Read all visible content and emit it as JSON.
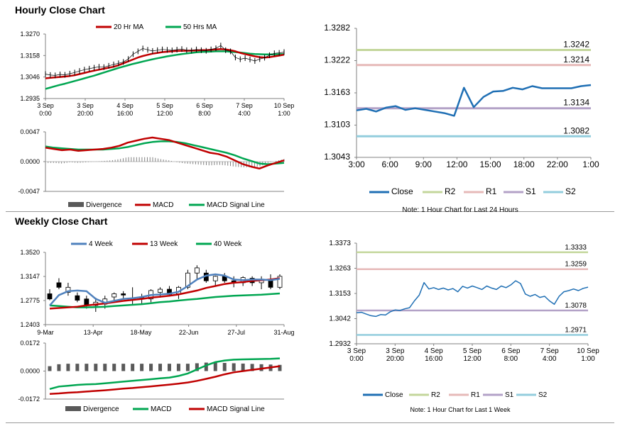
{
  "page": {
    "hourly_title": "Hourly Close Chart",
    "weekly_title": "Weekly Close Chart"
  },
  "colors": {
    "red": "#c00000",
    "green": "#00a651",
    "blue": "#1f6fb4",
    "steel": "#4f81bd",
    "gray": "#808080",
    "r2": "#c3d69b",
    "r1": "#e6b9b8",
    "s1": "#b3a2c7",
    "s2": "#93cddd"
  },
  "chart_data": [
    {
      "id": "hourly-price",
      "type": "line",
      "title": "Hourly Close Chart",
      "ylim": [
        1.2935,
        1.327
      ],
      "y_ticks": [
        "1.3270",
        "1.3158",
        "1.3046",
        "1.2935"
      ],
      "x_ticks": [
        [
          "3 Sep",
          "0:00"
        ],
        [
          "3 Sep",
          "20:00"
        ],
        [
          "4 Sep",
          "16:00"
        ],
        [
          "5 Sep",
          "12:00"
        ],
        [
          "6 Sep",
          "8:00"
        ],
        [
          "7 Sep",
          "4:00"
        ],
        [
          "10 Sep",
          "1:00"
        ]
      ],
      "legend": [
        "20 Hr MA",
        "50 Hrs MA"
      ],
      "close": [
        1.3062,
        1.3057,
        1.3055,
        1.306,
        1.3058,
        1.3064,
        1.307,
        1.3078,
        1.3085,
        1.309,
        1.3095,
        1.31,
        1.3098,
        1.3105,
        1.3112,
        1.3118,
        1.3125,
        1.314,
        1.3165,
        1.318,
        1.3195,
        1.3188,
        1.3182,
        1.3186,
        1.319,
        1.3188,
        1.3185,
        1.3189,
        1.3192,
        1.3186,
        1.3184,
        1.319,
        1.3186,
        1.3183,
        1.319,
        1.3196,
        1.321,
        1.3186,
        1.318,
        1.3148,
        1.3139,
        1.3145,
        1.3138,
        1.313,
        1.314,
        1.3147,
        1.316,
        1.317,
        1.3172,
        1.3176
      ],
      "ma20": [
        1.304,
        1.3043,
        1.3045,
        1.3047,
        1.3049,
        1.3052,
        1.3056,
        1.3062,
        1.3068,
        1.3074,
        1.308,
        1.3085,
        1.309,
        1.3095,
        1.31,
        1.3108,
        1.3118,
        1.3128,
        1.3138,
        1.3148,
        1.3156,
        1.3162,
        1.3168,
        1.3172,
        1.3176,
        1.3178,
        1.318,
        1.3182,
        1.3183,
        1.3183,
        1.3184,
        1.3185,
        1.3186,
        1.3186,
        1.3188,
        1.319,
        1.3192,
        1.319,
        1.3186,
        1.318,
        1.3172,
        1.3166,
        1.316,
        1.3154,
        1.315,
        1.3148,
        1.315,
        1.3154,
        1.3158,
        1.3163
      ],
      "ma50": [
        1.2985,
        1.2992,
        1.2999,
        1.3006,
        1.3012,
        1.3019,
        1.3026,
        1.3033,
        1.304,
        1.3047,
        1.3054,
        1.3062,
        1.307,
        1.3078,
        1.3086,
        1.3094,
        1.3101,
        1.3108,
        1.3115,
        1.3121,
        1.3127,
        1.3133,
        1.3139,
        1.3144,
        1.3149,
        1.3154,
        1.3158,
        1.3162,
        1.3166,
        1.3169,
        1.3172,
        1.3175,
        1.3177,
        1.3178,
        1.3179,
        1.318,
        1.318,
        1.318,
        1.3178,
        1.3176,
        1.3174,
        1.3171,
        1.3168,
        1.3166,
        1.3165,
        1.3164,
        1.3164,
        1.3164,
        1.3165,
        1.3166
      ]
    },
    {
      "id": "hourly-macd",
      "type": "line",
      "ylim": [
        -0.0047,
        0.0047
      ],
      "y_ticks": [
        "0.0047",
        "0.0000",
        "-0.0047"
      ],
      "legend": [
        "Divergence",
        "MACD",
        "MACD Signal Line"
      ],
      "macd": [
        0.0022,
        0.002,
        0.0018,
        0.0019,
        0.0017,
        0.0018,
        0.0019,
        0.002,
        0.0022,
        0.0025,
        0.003,
        0.0033,
        0.0036,
        0.0038,
        0.0036,
        0.0034,
        0.003,
        0.0026,
        0.0022,
        0.0018,
        0.0014,
        0.0012,
        0.0008,
        0.0002,
        -0.0004,
        -0.0008,
        -0.0011,
        -0.0006,
        -0.0002,
        0.0002
      ],
      "signal": [
        0.0024,
        0.0022,
        0.0021,
        0.002,
        0.0019,
        0.0019,
        0.0019,
        0.0019,
        0.002,
        0.0021,
        0.0023,
        0.0026,
        0.0029,
        0.0031,
        0.0032,
        0.0032,
        0.0031,
        0.0029,
        0.0026,
        0.0023,
        0.002,
        0.0017,
        0.0014,
        0.001,
        0.0005,
        0.0001,
        -0.0003,
        -0.0004,
        -0.0003,
        -0.0002
      ],
      "divergence": [
        -0.0002,
        -0.0002,
        -0.0003,
        -0.0001,
        -0.0002,
        -0.0001,
        0.0,
        0.0001,
        0.0002,
        0.0004,
        0.0007,
        0.0007,
        0.0007,
        0.0007,
        0.0004,
        0.0002,
        -0.0001,
        -0.0003,
        -0.0004,
        -0.0005,
        -0.0006,
        -0.0005,
        -0.0006,
        -0.0008,
        -0.0009,
        -0.0009,
        -0.0008,
        -0.0002,
        0.0001,
        0.0004
      ]
    },
    {
      "id": "hourly-levels",
      "type": "line",
      "ylim": [
        1.3043,
        1.3282
      ],
      "y_ticks": [
        "1.3282",
        "1.3222",
        "1.3163",
        "1.3103",
        "1.3043"
      ],
      "x_ticks": [
        "3:00",
        "6:00",
        "9:00",
        "12:00",
        "15:00",
        "18:00",
        "22:00",
        "1:00"
      ],
      "close": [
        1.313,
        1.3133,
        1.3128,
        1.3135,
        1.3138,
        1.3131,
        1.3134,
        1.3131,
        1.3128,
        1.3125,
        1.312,
        1.3172,
        1.3136,
        1.3155,
        1.3165,
        1.3166,
        1.3172,
        1.3169,
        1.3175,
        1.3171,
        1.3171,
        1.3171,
        1.3171,
        1.3175,
        1.3177
      ],
      "levels": [
        {
          "name": "R2",
          "value": 1.3242,
          "label": "1.3242"
        },
        {
          "name": "R1",
          "value": 1.3214,
          "label": "1.3214"
        },
        {
          "name": "S1",
          "value": 1.3134,
          "label": "1.3134"
        },
        {
          "name": "S2",
          "value": 1.3082,
          "label": "1.3082"
        }
      ],
      "legend": [
        "Close",
        "R2",
        "R1",
        "S1",
        "S2"
      ],
      "note": "Note: 1 Hour Chart for Last 24 Hours"
    },
    {
      "id": "weekly-price",
      "type": "candlestick",
      "title": "Weekly Close Chart",
      "ylim": [
        1.2403,
        1.352
      ],
      "y_ticks": [
        "1.3520",
        "1.3147",
        "1.2775",
        "1.2403"
      ],
      "x_ticks": [
        "9-Mar",
        "13-Apr",
        "18-May",
        "22-Jun",
        "27-Jul",
        "31-Aug"
      ],
      "legend": [
        "4 Week",
        "13 Week",
        "40 Week"
      ],
      "candles": [
        [
          1.288,
          1.295,
          1.278,
          1.28
        ],
        [
          1.305,
          1.312,
          1.295,
          1.298
        ],
        [
          1.29,
          1.305,
          1.285,
          1.298
        ],
        [
          1.285,
          1.29,
          1.275,
          1.278
        ],
        [
          1.28,
          1.285,
          1.265,
          1.27
        ],
        [
          1.27,
          1.282,
          1.26,
          1.275
        ],
        [
          1.272,
          1.285,
          1.265,
          1.28
        ],
        [
          1.283,
          1.29,
          1.278,
          1.288
        ],
        [
          1.288,
          1.292,
          1.28,
          1.286
        ],
        [
          1.278,
          1.298,
          1.272,
          1.28
        ],
        [
          1.282,
          1.288,
          1.272,
          1.28
        ],
        [
          1.28,
          1.295,
          1.275,
          1.293
        ],
        [
          1.29,
          1.298,
          1.282,
          1.295
        ],
        [
          1.295,
          1.3,
          1.285,
          1.287
        ],
        [
          1.288,
          1.3,
          1.28,
          1.298
        ],
        [
          1.298,
          1.325,
          1.295,
          1.32
        ],
        [
          1.32,
          1.332,
          1.31,
          1.328
        ],
        [
          1.32,
          1.325,
          1.305,
          1.308
        ],
        [
          1.308,
          1.316,
          1.3,
          1.315
        ],
        [
          1.315,
          1.32,
          1.305,
          1.308
        ],
        [
          1.308,
          1.315,
          1.298,
          1.305
        ],
        [
          1.305,
          1.315,
          1.3,
          1.313
        ],
        [
          1.312,
          1.315,
          1.3,
          1.305
        ],
        [
          1.305,
          1.315,
          1.295,
          1.31
        ],
        [
          1.31,
          1.318,
          1.295,
          1.298
        ],
        [
          1.298,
          1.318,
          1.295,
          1.315
        ]
      ],
      "ma4": [
        1.27,
        1.286,
        1.292,
        1.293,
        1.292,
        1.28,
        1.274,
        1.277,
        1.28,
        1.281,
        1.283,
        1.286,
        1.287,
        1.288,
        1.291,
        1.3,
        1.31,
        1.316,
        1.318,
        1.316,
        1.31,
        1.309,
        1.31,
        1.31,
        1.309,
        1.311
      ],
      "ma13": [
        1.265,
        1.266,
        1.267,
        1.268,
        1.27,
        1.2715,
        1.273,
        1.275,
        1.277,
        1.2785,
        1.28,
        1.282,
        1.2835,
        1.285,
        1.287,
        1.29,
        1.293,
        1.297,
        1.3,
        1.303,
        1.305,
        1.306,
        1.308,
        1.309,
        1.31,
        1.312
      ],
      "ma40": [
        1.27,
        1.269,
        1.268,
        1.267,
        1.267,
        1.2675,
        1.268,
        1.269,
        1.27,
        1.271,
        1.272,
        1.2735,
        1.275,
        1.276,
        1.2775,
        1.279,
        1.28,
        1.2815,
        1.283,
        1.284,
        1.285,
        1.2855,
        1.286,
        1.2865,
        1.2875,
        1.2885
      ]
    },
    {
      "id": "weekly-macd",
      "type": "bar+line",
      "ylim": [
        -0.0172,
        0.0172
      ],
      "y_ticks": [
        "0.0172",
        "0.0000",
        "-0.0172"
      ],
      "legend": [
        "Divergence",
        "MACD",
        "MACD Signal Line"
      ],
      "divergence": [
        0.003,
        0.0042,
        0.0045,
        0.0045,
        0.0045,
        0.0045,
        0.0045,
        0.0045,
        0.0045,
        0.0045,
        0.0045,
        0.0045,
        0.0045,
        0.0045,
        0.0045,
        0.0045,
        0.0048,
        0.0052,
        0.0052,
        0.005,
        0.0048,
        0.0046,
        0.0044,
        0.0042,
        0.004,
        0.0038
      ],
      "macd": [
        -0.011,
        -0.0095,
        -0.009,
        -0.0085,
        -0.0082,
        -0.008,
        -0.0075,
        -0.007,
        -0.0065,
        -0.006,
        -0.0055,
        -0.005,
        -0.0045,
        -0.004,
        -0.003,
        -0.0015,
        0.001,
        0.0035,
        0.0055,
        0.0065,
        0.007,
        0.0072,
        0.0073,
        0.0074,
        0.0075,
        0.0078
      ],
      "signal": [
        -0.014,
        -0.0137,
        -0.0133,
        -0.013,
        -0.0126,
        -0.0122,
        -0.0118,
        -0.0113,
        -0.0108,
        -0.0104,
        -0.0099,
        -0.0094,
        -0.0089,
        -0.0083,
        -0.0077,
        -0.007,
        -0.006,
        -0.0048,
        -0.0035,
        -0.002,
        -0.0008,
        0.0,
        0.0008,
        0.0015,
        0.0022,
        0.003
      ]
    },
    {
      "id": "weekly-levels",
      "type": "line",
      "ylim": [
        1.2932,
        1.3373
      ],
      "y_ticks": [
        "1.3373",
        "1.3263",
        "1.3153",
        "1.3042",
        "1.2932"
      ],
      "x_ticks": [
        [
          "3 Sep",
          "0:00"
        ],
        [
          "3 Sep",
          "20:00"
        ],
        [
          "4 Sep",
          "16:00"
        ],
        [
          "5 Sep",
          "12:00"
        ],
        [
          "6 Sep",
          "8:00"
        ],
        [
          "7 Sep",
          "4:00"
        ],
        [
          "10 Sep",
          "1:00"
        ]
      ],
      "close": [
        1.3068,
        1.307,
        1.3062,
        1.3055,
        1.3052,
        1.306,
        1.3058,
        1.3072,
        1.308,
        1.3078,
        1.3085,
        1.309,
        1.312,
        1.3145,
        1.32,
        1.3172,
        1.3178,
        1.317,
        1.3176,
        1.3168,
        1.3174,
        1.316,
        1.3184,
        1.3176,
        1.3185,
        1.3178,
        1.317,
        1.3185,
        1.3176,
        1.317,
        1.3185,
        1.3178,
        1.319,
        1.3208,
        1.3196,
        1.315,
        1.314,
        1.3148,
        1.3135,
        1.314,
        1.312,
        1.3105,
        1.314,
        1.316,
        1.3165,
        1.3172,
        1.3165,
        1.3175,
        1.318
      ],
      "levels": [
        {
          "name": "R2",
          "value": 1.3333,
          "label": "1.3333"
        },
        {
          "name": "R1",
          "value": 1.3259,
          "label": "1.3259"
        },
        {
          "name": "S1",
          "value": 1.3078,
          "label": "1.3078"
        },
        {
          "name": "S2",
          "value": 1.2971,
          "label": "1.2971"
        }
      ],
      "legend": [
        "Close",
        "R2",
        "R1",
        "S1",
        "S2"
      ],
      "note": "Note: 1 Hour Chart for Last 1 Week"
    }
  ]
}
